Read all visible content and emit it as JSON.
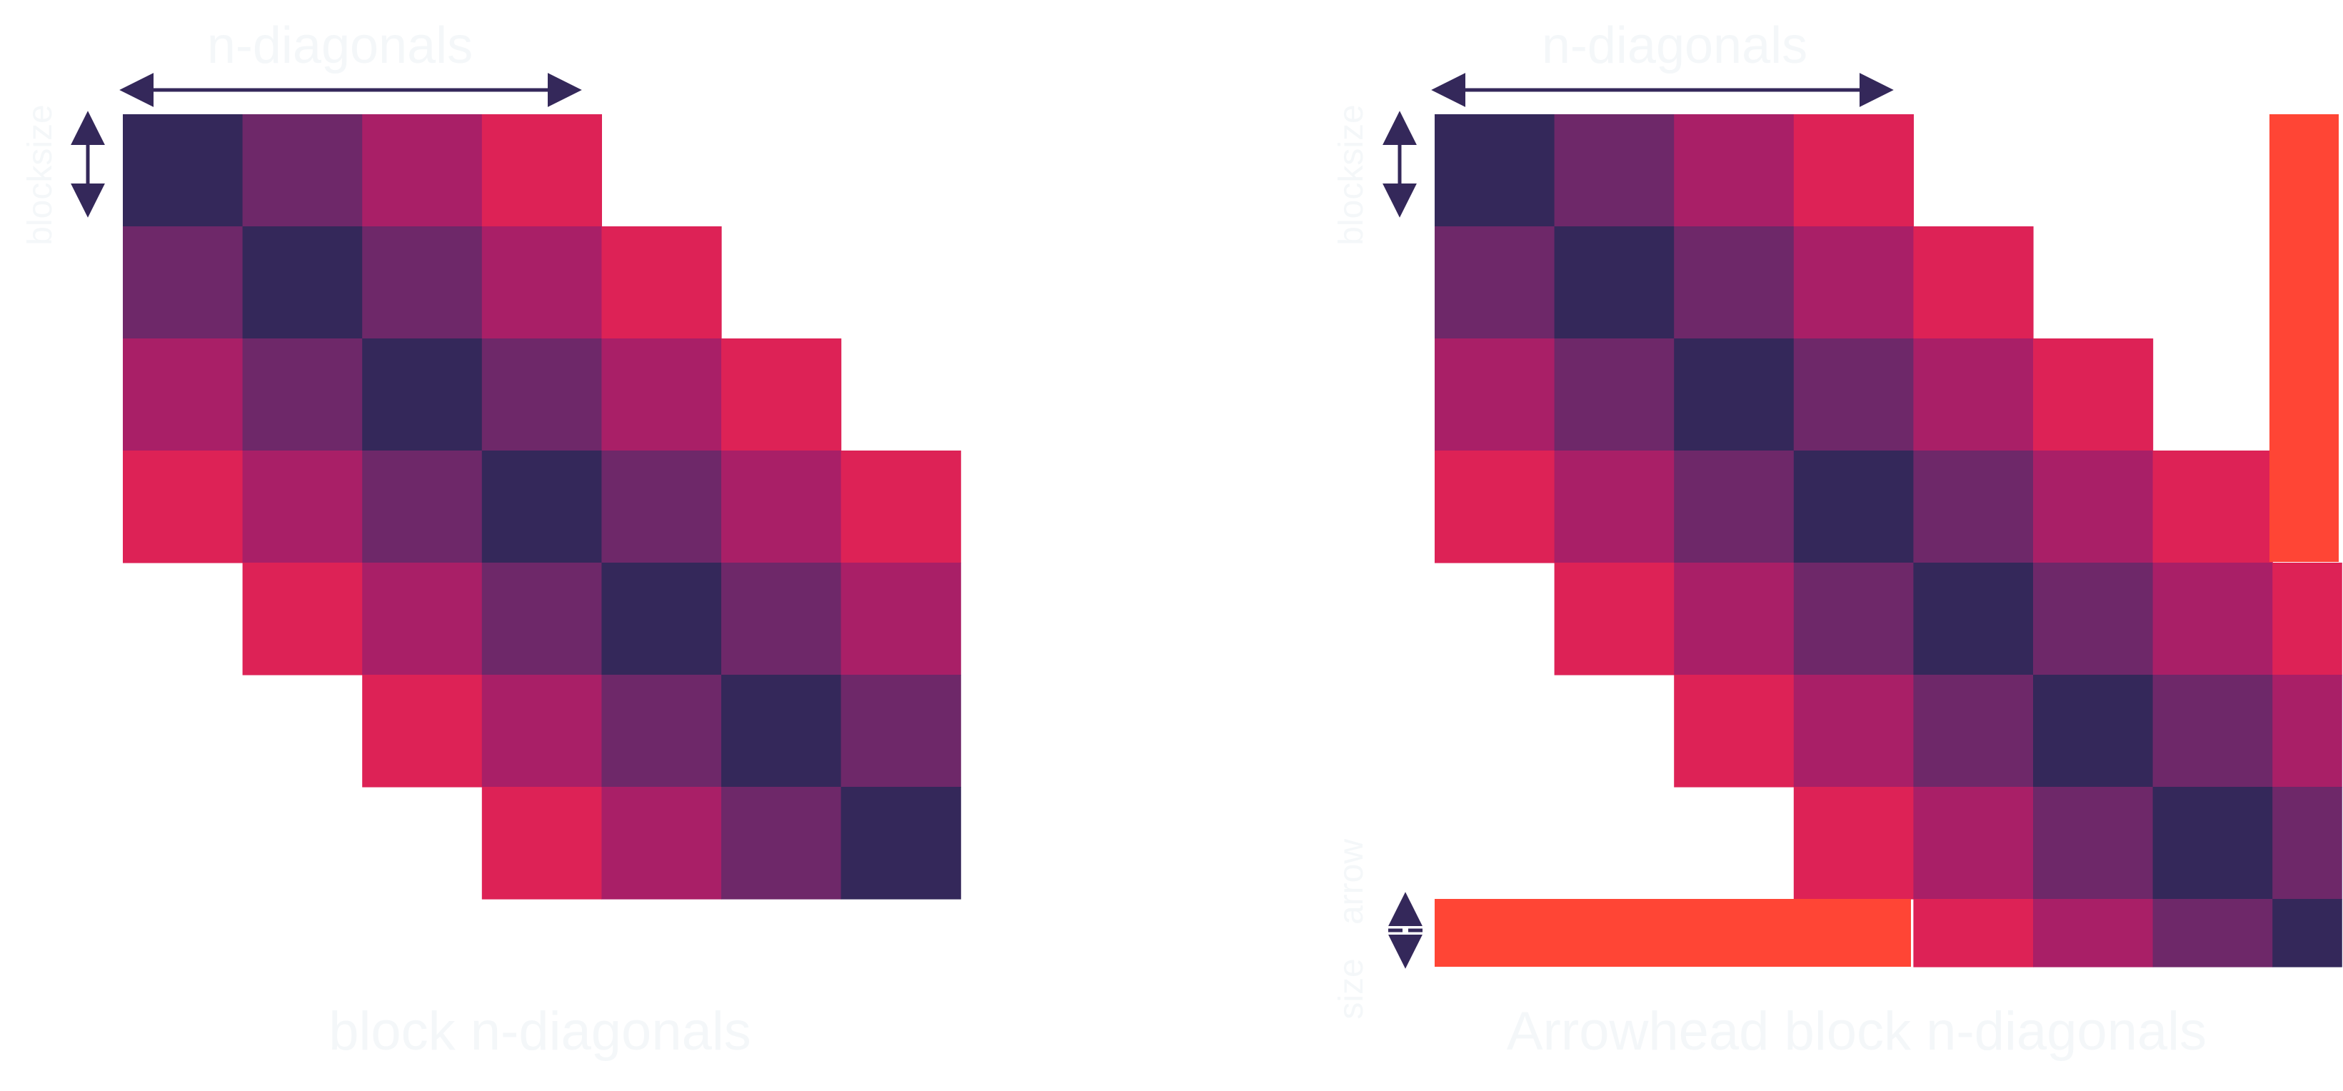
{
  "colors": {
    "band_0": "#34285a",
    "band_1": "#6e2869",
    "band_2": "#a91f67",
    "band_3": "#dd2256",
    "arrow_band": "#ff4535",
    "arrow": "#34285a",
    "label_text": "#f4f7f9"
  },
  "left_diagram": {
    "top_label": "n-diagonals",
    "side_label": "blocksize",
    "caption": "block n-diagonals",
    "grid_blocks": 7,
    "diagonals": 4
  },
  "right_diagram": {
    "top_label": "n-diagonals",
    "side_label": "blocksize",
    "arrow_label": "arrow",
    "arrow_label_2": "size",
    "caption": "Arrowhead block n-diagonals",
    "grid_blocks": 8,
    "diagonals": 4
  }
}
